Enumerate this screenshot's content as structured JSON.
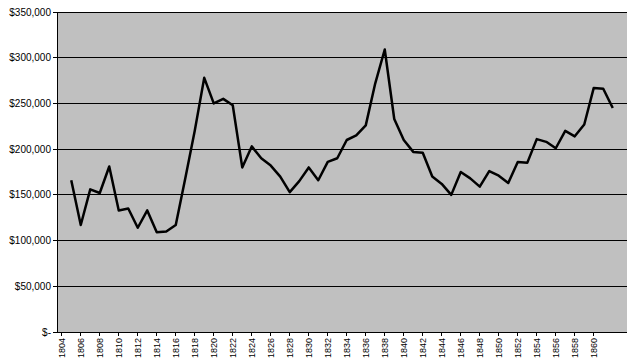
{
  "chart_data": {
    "type": "line",
    "x": [
      1805,
      1806,
      1807,
      1808,
      1809,
      1810,
      1811,
      1812,
      1813,
      1814,
      1815,
      1816,
      1817,
      1818,
      1819,
      1820,
      1821,
      1822,
      1823,
      1824,
      1825,
      1826,
      1827,
      1828,
      1829,
      1830,
      1831,
      1832,
      1833,
      1834,
      1835,
      1836,
      1837,
      1838,
      1839,
      1840,
      1841,
      1842,
      1843,
      1844,
      1845,
      1846,
      1847,
      1848,
      1849,
      1850,
      1851,
      1852,
      1853,
      1854,
      1855,
      1856,
      1857,
      1858,
      1859,
      1860,
      1861,
      1862
    ],
    "values": [
      166000,
      117000,
      156000,
      152000,
      181000,
      133000,
      135000,
      114000,
      133000,
      109000,
      110000,
      117000,
      168000,
      220000,
      278000,
      250000,
      255000,
      248000,
      180000,
      203000,
      190000,
      182000,
      170000,
      153000,
      165000,
      180000,
      166000,
      186000,
      190000,
      210000,
      215000,
      226000,
      272000,
      309000,
      233000,
      210000,
      197000,
      196000,
      170000,
      162000,
      150000,
      175000,
      168000,
      159000,
      176000,
      171000,
      163000,
      186000,
      185000,
      211000,
      208000,
      201000,
      220000,
      214000,
      227000,
      267000,
      266000,
      245000
    ],
    "color": "#000000",
    "xlim": [
      1803.5,
      1863.5
    ],
    "xticks": [
      1804,
      1806,
      1808,
      1810,
      1812,
      1814,
      1816,
      1818,
      1820,
      1822,
      1824,
      1826,
      1828,
      1830,
      1832,
      1834,
      1836,
      1838,
      1840,
      1842,
      1844,
      1846,
      1848,
      1850,
      1852,
      1854,
      1856,
      1858,
      1860
    ],
    "ylim": [
      0,
      350000
    ],
    "yticks": [
      {
        "value": 0,
        "label": "$-"
      },
      {
        "value": 50000,
        "label": "$50,000"
      },
      {
        "value": 100000,
        "label": "$100,000"
      },
      {
        "value": 150000,
        "label": "$150,000"
      },
      {
        "value": 200000,
        "label": "$200,000"
      },
      {
        "value": 250000,
        "label": "$250,000"
      },
      {
        "value": 300000,
        "label": "$300,000"
      },
      {
        "value": 350000,
        "label": "$350,000"
      }
    ],
    "grid": true
  }
}
